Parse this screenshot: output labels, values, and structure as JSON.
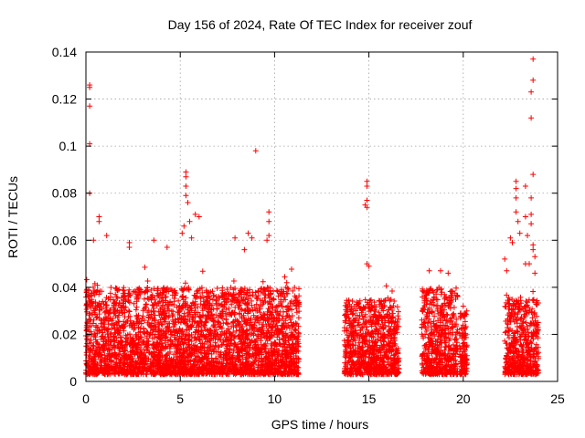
{
  "chart_data": {
    "type": "scatter",
    "title": "Day 156 of 2024, Rate Of TEC Index for receiver zouf",
    "xlabel": "GPS time / hours",
    "ylabel": "ROTI / TECUs",
    "xlim": [
      0,
      25
    ],
    "ylim": [
      0,
      0.14
    ],
    "xticks": [
      0,
      5,
      10,
      15,
      20,
      25
    ],
    "xtick_labels": [
      "0",
      "5",
      "10",
      "15",
      "20",
      "25"
    ],
    "yticks": [
      0,
      0.02,
      0.04,
      0.06,
      0.08,
      0.1,
      0.12,
      0.14
    ],
    "ytick_labels": [
      "0",
      "0.02",
      "0.04",
      "0.06",
      "0.08",
      "0.1",
      "0.12",
      "0.14"
    ],
    "grid": true,
    "marker": "+",
    "marker_color": "#ff0000",
    "observation_windows": [
      {
        "start": 0.0,
        "end": 11.3,
        "typical_max": 0.04
      },
      {
        "start": 13.7,
        "end": 16.6,
        "typical_max": 0.035
      },
      {
        "start": 17.8,
        "end": 19.7,
        "typical_max": 0.04
      },
      {
        "start": 19.8,
        "end": 20.2,
        "typical_max": 0.03
      },
      {
        "start": 22.2,
        "end": 24.0,
        "typical_max": 0.035
      }
    ],
    "outliers": [
      {
        "x": 0.2,
        "y": 0.126
      },
      {
        "x": 0.2,
        "y": 0.125
      },
      {
        "x": 0.2,
        "y": 0.117
      },
      {
        "x": 0.2,
        "y": 0.101
      },
      {
        "x": 0.2,
        "y": 0.08
      },
      {
        "x": 0.7,
        "y": 0.07
      },
      {
        "x": 0.7,
        "y": 0.068
      },
      {
        "x": 0.4,
        "y": 0.06
      },
      {
        "x": 1.1,
        "y": 0.062
      },
      {
        "x": 2.3,
        "y": 0.059
      },
      {
        "x": 2.3,
        "y": 0.057
      },
      {
        "x": 3.6,
        "y": 0.06
      },
      {
        "x": 4.3,
        "y": 0.057
      },
      {
        "x": 5.3,
        "y": 0.089
      },
      {
        "x": 5.3,
        "y": 0.087
      },
      {
        "x": 5.3,
        "y": 0.083
      },
      {
        "x": 5.3,
        "y": 0.079
      },
      {
        "x": 5.4,
        "y": 0.076
      },
      {
        "x": 5.5,
        "y": 0.068
      },
      {
        "x": 5.2,
        "y": 0.066
      },
      {
        "x": 5.1,
        "y": 0.063
      },
      {
        "x": 5.8,
        "y": 0.071
      },
      {
        "x": 6.0,
        "y": 0.07
      },
      {
        "x": 5.6,
        "y": 0.061
      },
      {
        "x": 7.9,
        "y": 0.061
      },
      {
        "x": 8.6,
        "y": 0.063
      },
      {
        "x": 8.8,
        "y": 0.061
      },
      {
        "x": 8.4,
        "y": 0.056
      },
      {
        "x": 9.0,
        "y": 0.098
      },
      {
        "x": 9.7,
        "y": 0.072
      },
      {
        "x": 9.7,
        "y": 0.068
      },
      {
        "x": 9.7,
        "y": 0.062
      },
      {
        "x": 9.6,
        "y": 0.06
      },
      {
        "x": 14.9,
        "y": 0.085
      },
      {
        "x": 14.9,
        "y": 0.083
      },
      {
        "x": 14.9,
        "y": 0.077
      },
      {
        "x": 14.8,
        "y": 0.075
      },
      {
        "x": 14.9,
        "y": 0.074
      },
      {
        "x": 14.9,
        "y": 0.05
      },
      {
        "x": 15.0,
        "y": 0.049
      },
      {
        "x": 18.2,
        "y": 0.047
      },
      {
        "x": 18.8,
        "y": 0.047
      },
      {
        "x": 19.2,
        "y": 0.046
      },
      {
        "x": 20.0,
        "y": 0.032
      },
      {
        "x": 22.2,
        "y": 0.052
      },
      {
        "x": 22.3,
        "y": 0.047
      },
      {
        "x": 22.5,
        "y": 0.061
      },
      {
        "x": 22.6,
        "y": 0.059
      },
      {
        "x": 22.8,
        "y": 0.085
      },
      {
        "x": 22.8,
        "y": 0.082
      },
      {
        "x": 22.8,
        "y": 0.078
      },
      {
        "x": 22.8,
        "y": 0.072
      },
      {
        "x": 22.9,
        "y": 0.068
      },
      {
        "x": 23.0,
        "y": 0.063
      },
      {
        "x": 23.3,
        "y": 0.083
      },
      {
        "x": 23.3,
        "y": 0.07
      },
      {
        "x": 23.4,
        "y": 0.062
      },
      {
        "x": 23.6,
        "y": 0.078
      },
      {
        "x": 23.7,
        "y": 0.137
      },
      {
        "x": 23.7,
        "y": 0.128
      },
      {
        "x": 23.6,
        "y": 0.123
      },
      {
        "x": 23.6,
        "y": 0.112
      },
      {
        "x": 23.7,
        "y": 0.088
      },
      {
        "x": 23.6,
        "y": 0.071
      },
      {
        "x": 23.6,
        "y": 0.067
      },
      {
        "x": 23.7,
        "y": 0.058
      },
      {
        "x": 23.7,
        "y": 0.056
      },
      {
        "x": 23.8,
        "y": 0.053
      },
      {
        "x": 23.5,
        "y": 0.05
      },
      {
        "x": 23.3,
        "y": 0.05
      },
      {
        "x": 23.8,
        "y": 0.046
      }
    ]
  }
}
